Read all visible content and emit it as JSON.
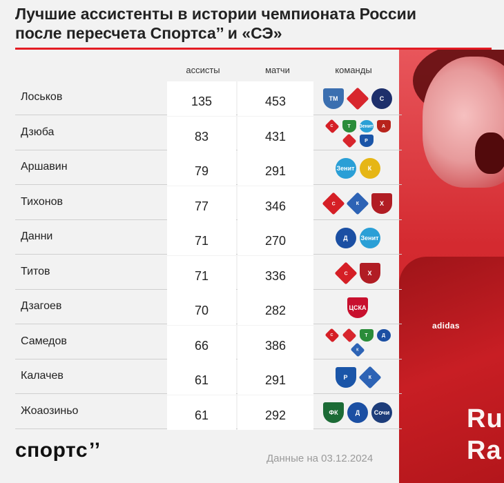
{
  "title": {
    "line1": "Лучшие ассистенты в истории чемпионата России",
    "line2": "после пересчета Спортса’’ и «СЭ»"
  },
  "table": {
    "columns": {
      "assists": "ассисты",
      "matches": "матчи",
      "teams": "команды"
    }
  },
  "chart_data": {
    "type": "table",
    "title": "Лучшие ассистенты в истории чемпионата России после пересчета Спортса’’ и «СЭ»",
    "columns": [
      "ассисты",
      "матчи",
      "команды"
    ],
    "rows": [
      {
        "name": "Лоськов",
        "assists": 135,
        "matches": 453,
        "teams": [
          "torpedo-logo",
          "lokomotiv-logo",
          "saturn-logo"
        ]
      },
      {
        "name": "Дзюба",
        "assists": 83,
        "matches": 431,
        "teams": [
          "spartak-logo",
          "tom-logo",
          "zenit-logo",
          "arsenal-logo",
          "lokomotiv-logo",
          "rostov-logo"
        ]
      },
      {
        "name": "Аршавин",
        "assists": 79,
        "matches": 291,
        "teams": [
          "zenit-logo",
          "kuban-logo"
        ]
      },
      {
        "name": "Тихонов",
        "assists": 77,
        "matches": 346,
        "teams": [
          "spartak-logo",
          "krylia-logo",
          "khimki-logo"
        ]
      },
      {
        "name": "Данни",
        "assists": 71,
        "matches": 270,
        "teams": [
          "dinamo-logo",
          "zenit-logo"
        ]
      },
      {
        "name": "Титов",
        "assists": 71,
        "matches": 336,
        "teams": [
          "spartak-logo",
          "khimki-logo"
        ]
      },
      {
        "name": "Дзагоев",
        "assists": 70,
        "matches": 282,
        "teams": [
          "cska-logo"
        ]
      },
      {
        "name": "Самедов",
        "assists": 66,
        "matches": 386,
        "teams": [
          "spartak-logo",
          "lokomotiv-logo",
          "tom-logo",
          "dinamo-logo",
          "krylia-logo"
        ]
      },
      {
        "name": "Калачев",
        "assists": 61,
        "matches": 291,
        "teams": [
          "rostov-logo",
          "krylia-logo"
        ]
      },
      {
        "name": "Жоаозиньо",
        "assists": 61,
        "matches": 292,
        "teams": [
          "krasnodar-logo",
          "dinamo-logo",
          "sochi-logo"
        ]
      }
    ]
  },
  "logos": {
    "torpedo-logo": {
      "color": "#3b6fb0",
      "shape": "shield",
      "text": "ТМ"
    },
    "lokomotiv-logo": {
      "color": "#d8262d",
      "shape": "diamond",
      "text": ""
    },
    "saturn-logo": {
      "color": "#1d2f6b",
      "shape": "round",
      "text": "С"
    },
    "spartak-logo": {
      "color": "#d51f26",
      "shape": "diamond",
      "text": "С"
    },
    "tom-logo": {
      "color": "#2a8c3a",
      "shape": "shield",
      "text": "Т"
    },
    "zenit-logo": {
      "color": "#2a9fd6",
      "shape": "round",
      "text": "Зенит"
    },
    "arsenal-logo": {
      "color": "#b8241c",
      "shape": "shield",
      "text": "А"
    },
    "rostov-logo": {
      "color": "#1a55a8",
      "shape": "shield",
      "text": "Р"
    },
    "kuban-logo": {
      "color": "#e6b615",
      "shape": "round",
      "text": "К"
    },
    "krylia-logo": {
      "color": "#2d63b5",
      "shape": "diamond",
      "text": "К"
    },
    "khimki-logo": {
      "color": "#b11d24",
      "shape": "shield",
      "text": "Х"
    },
    "dinamo-logo": {
      "color": "#1b4fa3",
      "shape": "round",
      "text": "Д"
    },
    "cska-logo": {
      "color": "#c8102e",
      "shape": "shield",
      "text": "ЦСКА"
    },
    "krasnodar-logo": {
      "color": "#1c6b36",
      "shape": "shield",
      "text": "ФК"
    },
    "sochi-logo": {
      "color": "#1d3d7a",
      "shape": "round",
      "text": "Сочи"
    }
  },
  "footer": {
    "logo_text": "спортс",
    "logo_mark": "’’",
    "date_note": "Данные на 03.12.2024"
  },
  "photo": {
    "kit_brand": "adidas",
    "sponsor": "Ru\nRa"
  },
  "colors": {
    "accent": "#e31b23",
    "background": "#f2f2f2",
    "cell": "#ffffff"
  }
}
